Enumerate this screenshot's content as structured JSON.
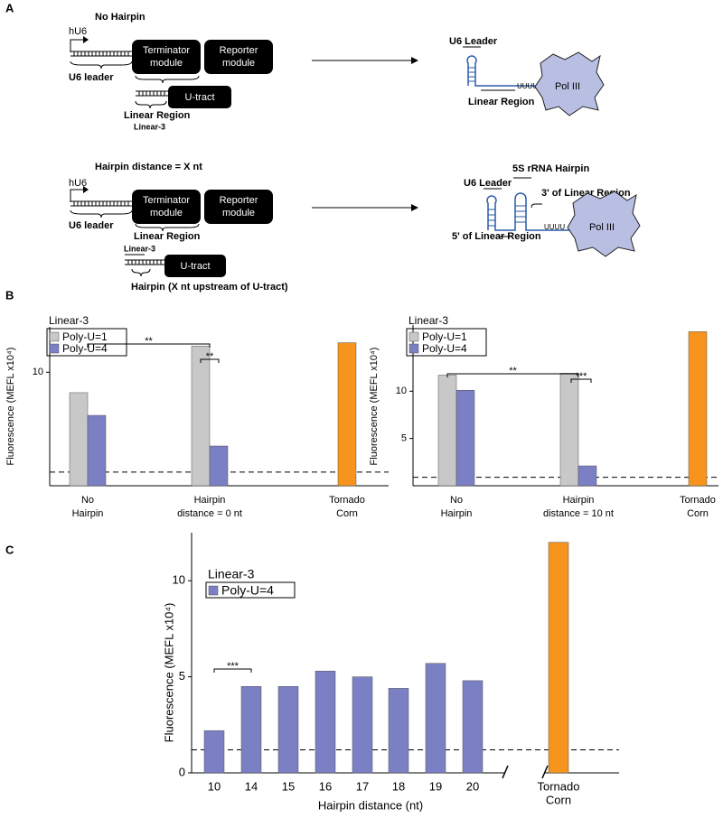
{
  "panels": [
    "A",
    "B",
    "C"
  ],
  "diagram": {
    "top": {
      "title": "No Hairpin",
      "promoter": "hU6",
      "leader": "U6 leader",
      "terminator": [
        "Terminator",
        "module"
      ],
      "reporter": [
        "Reporter",
        "module"
      ],
      "utract": "U-tract",
      "linear_region": "Linear Region",
      "linear3": "Linear-3",
      "rna_leader": "U6 Leader",
      "rna_linear": "Linear Region",
      "uuuu": "UUUU",
      "pol": "Pol III"
    },
    "bottom": {
      "title": "Hairpin distance = X nt",
      "promoter": "hU6",
      "leader": "U6 leader",
      "terminator": [
        "Terminator",
        "module"
      ],
      "reporter": [
        "Reporter",
        "module"
      ],
      "linear_region": "Linear Region",
      "linear3": "Linear-3",
      "utract": "U-tract",
      "hairpin": "Hairpin (X nt upstream of U-tract)",
      "rna_5s": "5S rRNA Hairpin",
      "rna_leader": "U6 Leader",
      "rna_3": "3' of Linear Region",
      "rna_5": "5' of Linear Region",
      "uuuu": "UUUU",
      "pol": "Pol III"
    }
  },
  "chart_data": [
    {
      "type": "bar",
      "ylabel": "Fluorescence (MEFL x10⁴)",
      "legend_title": "Linear-3",
      "categories": [
        [
          "No",
          "Hairpin"
        ],
        [
          "Hairpin",
          "distance = 0 nt"
        ],
        [
          "Tornado",
          "Corn"
        ]
      ],
      "series": [
        {
          "name": "Poly-U=1",
          "color": "#c8c8c8",
          "values": [
            8.2,
            12.3,
            null
          ]
        },
        {
          "name": "Poly-U=4",
          "color": "#7b7fc4",
          "values": [
            6.2,
            3.5,
            null
          ]
        },
        {
          "color": "#f7941d",
          "values": [
            null,
            null,
            12.6
          ]
        }
      ],
      "threshold": 1.2,
      "ylim": [
        0,
        14
      ],
      "yticks": [
        10
      ],
      "annotations": [
        "**",
        "**"
      ]
    },
    {
      "type": "bar",
      "ylabel": "Fluorescence (MEFL x10⁴)",
      "legend_title": "Linear-3",
      "categories": [
        [
          "No",
          "Hairpin"
        ],
        [
          "Hairpin",
          "distance = 10 nt"
        ],
        [
          "Tornado",
          "Corn"
        ]
      ],
      "series": [
        {
          "name": "Poly-U=1",
          "color": "#c8c8c8",
          "values": [
            11.7,
            11.9,
            null
          ]
        },
        {
          "name": "Poly-U=4",
          "color": "#7b7fc4",
          "values": [
            10.1,
            2.1,
            null
          ]
        },
        {
          "color": "#f7941d",
          "values": [
            null,
            null,
            16.3
          ]
        }
      ],
      "threshold": 0.9,
      "ylim": [
        0,
        17
      ],
      "yticks": [
        5,
        10
      ],
      "annotations": [
        "**",
        "***"
      ]
    },
    {
      "type": "bar",
      "ylabel": "Fluorescence (MEFL x10⁴)",
      "xlabel": "Hairpin distance (nt)",
      "legend_title": "Linear-3",
      "categories": [
        [
          "10"
        ],
        [
          "14"
        ],
        [
          "15"
        ],
        [
          "16"
        ],
        [
          "17"
        ],
        [
          "18"
        ],
        [
          "19"
        ],
        [
          "20"
        ],
        [
          "Tornado",
          "Corn"
        ]
      ],
      "series": [
        {
          "name": "Poly-U=4",
          "color": "#7b7fc4",
          "values": [
            2.2,
            4.5,
            4.5,
            5.3,
            5.0,
            4.4,
            5.7,
            4.8,
            null
          ]
        },
        {
          "color": "#f7941d",
          "values": [
            null,
            null,
            null,
            null,
            null,
            null,
            null,
            null,
            12.0
          ]
        }
      ],
      "threshold": 1.2,
      "ylim": [
        0,
        12.5
      ],
      "yticks": [
        0,
        5,
        10
      ],
      "annotations": [
        "***"
      ]
    }
  ]
}
